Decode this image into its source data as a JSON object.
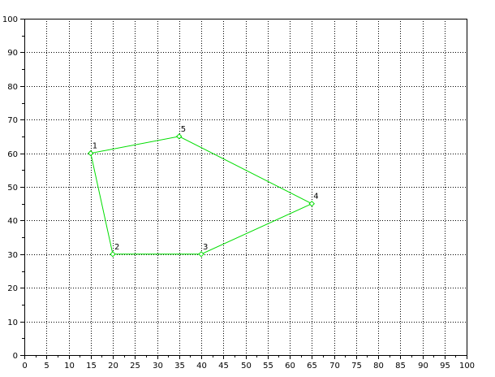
{
  "chart_data": {
    "type": "line",
    "title": "",
    "xlabel": "",
    "ylabel": "",
    "xlim": [
      0,
      100
    ],
    "ylim": [
      0,
      100
    ],
    "x_ticks": [
      0,
      5,
      10,
      15,
      20,
      25,
      30,
      35,
      40,
      45,
      50,
      55,
      60,
      65,
      70,
      75,
      80,
      85,
      90,
      95,
      100
    ],
    "y_ticks": [
      0,
      10,
      20,
      30,
      40,
      50,
      60,
      70,
      80,
      90,
      100
    ],
    "grid": true,
    "grid_style": "dotted",
    "series": [
      {
        "closed": true,
        "color": "#00dd00",
        "marker": "diamond",
        "points": [
          {
            "label": "1",
            "x": 15,
            "y": 60
          },
          {
            "label": "2",
            "x": 20,
            "y": 30
          },
          {
            "label": "3",
            "x": 40,
            "y": 30
          },
          {
            "label": "4",
            "x": 65,
            "y": 45
          },
          {
            "label": "5",
            "x": 35,
            "y": 65
          }
        ]
      }
    ]
  }
}
